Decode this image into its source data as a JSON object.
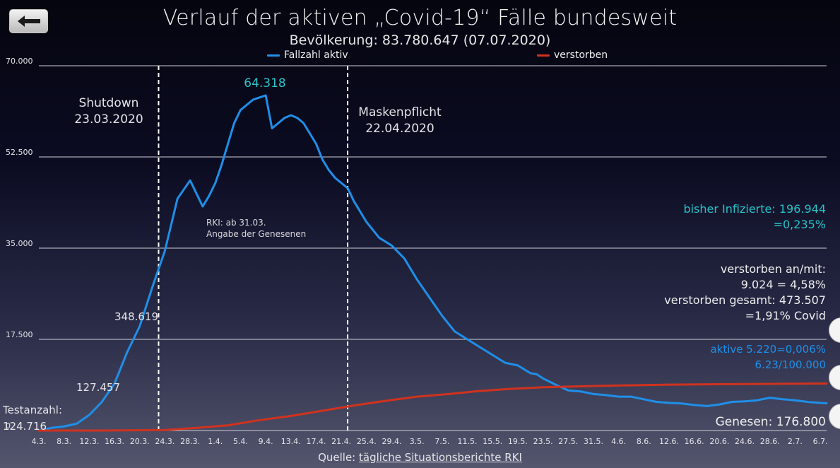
{
  "nav": {
    "back_icon": "arrow-left-icon"
  },
  "header": {
    "title": "Verlauf der aktiven „Covid-19“ Fälle bundesweit",
    "subtitle": "Bevölkerung: 83.780.647 (07.07.2020)"
  },
  "legend": [
    {
      "name": "Fallzahl aktiv",
      "color": "#1f8fe8"
    },
    {
      "name": "verstorben",
      "color": "#d0321e"
    }
  ],
  "annotations": {
    "shutdown_title": "Shutdown",
    "shutdown_date": "23.03.2020",
    "mask_title": "Maskenpflicht",
    "mask_date": "22.04.2020",
    "rki_line1": "RKI: ab 31.03.",
    "rki_line2": "Angabe der Genesenen",
    "peak": "64.318",
    "label_348": "348.619",
    "label_127": "127.457",
    "label_testanzahl": "Testanzahl: 124.716"
  },
  "stats": {
    "infected_line1": "bisher Infizierte: 196.944",
    "infected_line2": "=0,235%",
    "deaths_line1": "verstorben an/mit:",
    "deaths_line2": "9.024 = 4,58%",
    "deaths_line3": "verstorben gesamt: 473.507",
    "deaths_line4": "=1,91% Covid",
    "active_line1": "aktive 5.220=0,006%",
    "active_line2": "6.23/100.000",
    "recovered": "Genesen: 176.800"
  },
  "source": {
    "prefix": "Quelle: ",
    "link": "tägliche Situationsberichte RKI"
  },
  "chart_data": {
    "type": "line",
    "ylim": [
      0,
      70000
    ],
    "y_ticks": [
      0,
      17500,
      35000,
      52500,
      70000
    ],
    "y_tick_labels": [
      "0",
      "17.500",
      "35.000",
      "52.500",
      "70.000"
    ],
    "x_tick_labels": [
      "4.3.",
      "8.3.",
      "12.3.",
      "16.3.",
      "20.3.",
      "24.3.",
      "28.3.",
      "1.4.",
      "5.4.",
      "9.4.",
      "13.4.",
      "17.4.",
      "21.4.",
      "25.4.",
      "29.4.",
      "3.5.",
      "7.5.",
      "11.5.",
      "15.5.",
      "19.5.",
      "23.5.",
      "27.5.",
      "31.5.",
      "4.6.",
      "8.6.",
      "12.6.",
      "16.6.",
      "20.6.",
      "24.6.",
      "28.6.",
      "2.7.",
      "6.7."
    ],
    "grid": true,
    "legend_position": "top",
    "vertical_markers": [
      {
        "day": 19,
        "label": "Shutdown 23.03.2020"
      },
      {
        "day": 49,
        "label": "Maskenpflicht 22.04.2020"
      }
    ],
    "x_domain_days": [
      0,
      125
    ],
    "series": [
      {
        "name": "Fallzahl aktiv",
        "color": "#1f8fe8",
        "x": [
          0,
          2,
          4,
          6,
          8,
          10,
          12,
          14,
          16,
          18,
          19,
          20,
          22,
          24,
          26,
          27,
          28,
          29,
          30,
          31,
          32,
          34,
          36,
          37,
          38,
          39,
          40,
          41,
          42,
          43,
          44,
          45,
          46,
          47,
          48,
          49,
          50,
          52,
          54,
          56,
          58,
          60,
          62,
          64,
          66,
          68,
          70,
          72,
          74,
          76,
          78,
          79,
          80,
          82,
          84,
          86,
          88,
          90,
          92,
          94,
          96,
          98,
          100,
          102,
          104,
          106,
          108,
          110,
          112,
          114,
          116,
          118,
          120,
          122,
          124,
          125
        ],
        "y": [
          0,
          500,
          800,
          1300,
          3000,
          5500,
          9000,
          15000,
          20000,
          27500,
          31000,
          34500,
          44500,
          48000,
          43000,
          45000,
          47500,
          51000,
          55000,
          59000,
          61500,
          63500,
          64318,
          58000,
          59000,
          60000,
          60500,
          60000,
          59000,
          57000,
          55000,
          52000,
          50000,
          48500,
          47500,
          46500,
          44000,
          40000,
          37000,
          35500,
          33000,
          29000,
          25500,
          22000,
          19000,
          17500,
          16000,
          14500,
          13000,
          12500,
          11000,
          10800,
          10000,
          8800,
          7700,
          7500,
          7000,
          6800,
          6500,
          6500,
          6000,
          5500,
          5300,
          5200,
          4900,
          4700,
          5000,
          5500,
          5600,
          5800,
          6300,
          6000,
          5800,
          5500,
          5300,
          5220
        ]
      },
      {
        "name": "verstorben",
        "color": "#d0321e",
        "x": [
          0,
          10,
          20,
          25,
          30,
          35,
          40,
          45,
          50,
          55,
          60,
          65,
          70,
          75,
          80,
          90,
          100,
          110,
          120,
          125
        ],
        "y": [
          0,
          0,
          100,
          500,
          1000,
          2000,
          2800,
          3800,
          4800,
          5700,
          6500,
          7000,
          7600,
          8000,
          8300,
          8600,
          8800,
          8900,
          9000,
          9024
        ]
      }
    ],
    "point_labels": [
      {
        "text": "64.318",
        "series": 0,
        "day": 36
      },
      {
        "text": "348.619",
        "series": 0,
        "day": 19
      },
      {
        "text": "127.457",
        "series": 0,
        "day": 11
      },
      {
        "text": "Testanzahl: 124.716",
        "series": 0,
        "day": 1
      }
    ]
  }
}
